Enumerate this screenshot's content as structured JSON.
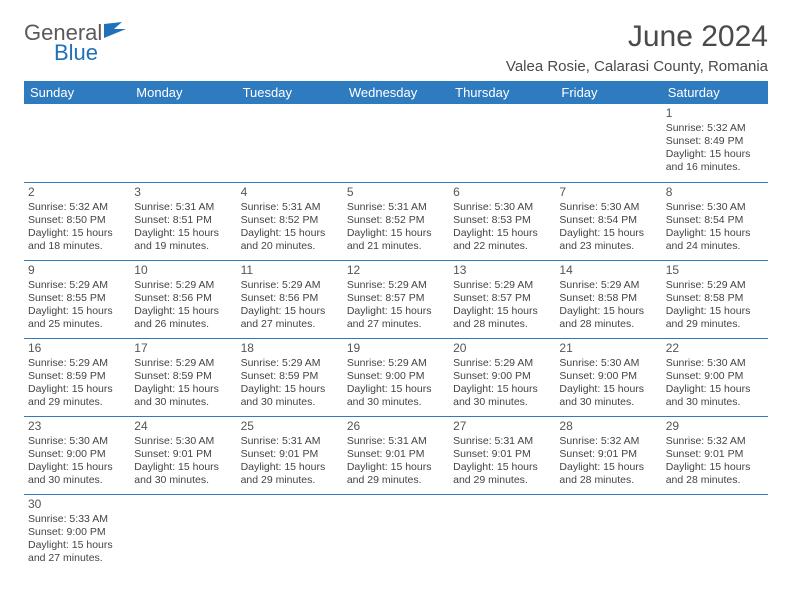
{
  "brand": {
    "general": "General",
    "blue": "Blue"
  },
  "title": "June 2024",
  "location": "Valea Rosie, Calarasi County, Romania",
  "colors": {
    "header_bg": "#2f7bbf",
    "header_text": "#ffffff",
    "rule": "#2f7bbf",
    "logo_gray": "#5a5a5a",
    "logo_blue": "#2072b8",
    "body_text": "#444444",
    "page_bg": "#ffffff"
  },
  "typography": {
    "title_fontsize": 30,
    "location_fontsize": 15,
    "dayheader_fontsize": 13,
    "cell_fontsize": 10.5,
    "daynum_fontsize": 12
  },
  "weekdays": [
    "Sunday",
    "Monday",
    "Tuesday",
    "Wednesday",
    "Thursday",
    "Friday",
    "Saturday"
  ],
  "weeks": [
    [
      null,
      null,
      null,
      null,
      null,
      null,
      {
        "n": "1",
        "sr": "Sunrise: 5:32 AM",
        "ss": "Sunset: 8:49 PM",
        "d1": "Daylight: 15 hours",
        "d2": "and 16 minutes."
      }
    ],
    [
      {
        "n": "2",
        "sr": "Sunrise: 5:32 AM",
        "ss": "Sunset: 8:50 PM",
        "d1": "Daylight: 15 hours",
        "d2": "and 18 minutes."
      },
      {
        "n": "3",
        "sr": "Sunrise: 5:31 AM",
        "ss": "Sunset: 8:51 PM",
        "d1": "Daylight: 15 hours",
        "d2": "and 19 minutes."
      },
      {
        "n": "4",
        "sr": "Sunrise: 5:31 AM",
        "ss": "Sunset: 8:52 PM",
        "d1": "Daylight: 15 hours",
        "d2": "and 20 minutes."
      },
      {
        "n": "5",
        "sr": "Sunrise: 5:31 AM",
        "ss": "Sunset: 8:52 PM",
        "d1": "Daylight: 15 hours",
        "d2": "and 21 minutes."
      },
      {
        "n": "6",
        "sr": "Sunrise: 5:30 AM",
        "ss": "Sunset: 8:53 PM",
        "d1": "Daylight: 15 hours",
        "d2": "and 22 minutes."
      },
      {
        "n": "7",
        "sr": "Sunrise: 5:30 AM",
        "ss": "Sunset: 8:54 PM",
        "d1": "Daylight: 15 hours",
        "d2": "and 23 minutes."
      },
      {
        "n": "8",
        "sr": "Sunrise: 5:30 AM",
        "ss": "Sunset: 8:54 PM",
        "d1": "Daylight: 15 hours",
        "d2": "and 24 minutes."
      }
    ],
    [
      {
        "n": "9",
        "sr": "Sunrise: 5:29 AM",
        "ss": "Sunset: 8:55 PM",
        "d1": "Daylight: 15 hours",
        "d2": "and 25 minutes."
      },
      {
        "n": "10",
        "sr": "Sunrise: 5:29 AM",
        "ss": "Sunset: 8:56 PM",
        "d1": "Daylight: 15 hours",
        "d2": "and 26 minutes."
      },
      {
        "n": "11",
        "sr": "Sunrise: 5:29 AM",
        "ss": "Sunset: 8:56 PM",
        "d1": "Daylight: 15 hours",
        "d2": "and 27 minutes."
      },
      {
        "n": "12",
        "sr": "Sunrise: 5:29 AM",
        "ss": "Sunset: 8:57 PM",
        "d1": "Daylight: 15 hours",
        "d2": "and 27 minutes."
      },
      {
        "n": "13",
        "sr": "Sunrise: 5:29 AM",
        "ss": "Sunset: 8:57 PM",
        "d1": "Daylight: 15 hours",
        "d2": "and 28 minutes."
      },
      {
        "n": "14",
        "sr": "Sunrise: 5:29 AM",
        "ss": "Sunset: 8:58 PM",
        "d1": "Daylight: 15 hours",
        "d2": "and 28 minutes."
      },
      {
        "n": "15",
        "sr": "Sunrise: 5:29 AM",
        "ss": "Sunset: 8:58 PM",
        "d1": "Daylight: 15 hours",
        "d2": "and 29 minutes."
      }
    ],
    [
      {
        "n": "16",
        "sr": "Sunrise: 5:29 AM",
        "ss": "Sunset: 8:59 PM",
        "d1": "Daylight: 15 hours",
        "d2": "and 29 minutes."
      },
      {
        "n": "17",
        "sr": "Sunrise: 5:29 AM",
        "ss": "Sunset: 8:59 PM",
        "d1": "Daylight: 15 hours",
        "d2": "and 30 minutes."
      },
      {
        "n": "18",
        "sr": "Sunrise: 5:29 AM",
        "ss": "Sunset: 8:59 PM",
        "d1": "Daylight: 15 hours",
        "d2": "and 30 minutes."
      },
      {
        "n": "19",
        "sr": "Sunrise: 5:29 AM",
        "ss": "Sunset: 9:00 PM",
        "d1": "Daylight: 15 hours",
        "d2": "and 30 minutes."
      },
      {
        "n": "20",
        "sr": "Sunrise: 5:29 AM",
        "ss": "Sunset: 9:00 PM",
        "d1": "Daylight: 15 hours",
        "d2": "and 30 minutes."
      },
      {
        "n": "21",
        "sr": "Sunrise: 5:30 AM",
        "ss": "Sunset: 9:00 PM",
        "d1": "Daylight: 15 hours",
        "d2": "and 30 minutes."
      },
      {
        "n": "22",
        "sr": "Sunrise: 5:30 AM",
        "ss": "Sunset: 9:00 PM",
        "d1": "Daylight: 15 hours",
        "d2": "and 30 minutes."
      }
    ],
    [
      {
        "n": "23",
        "sr": "Sunrise: 5:30 AM",
        "ss": "Sunset: 9:00 PM",
        "d1": "Daylight: 15 hours",
        "d2": "and 30 minutes."
      },
      {
        "n": "24",
        "sr": "Sunrise: 5:30 AM",
        "ss": "Sunset: 9:01 PM",
        "d1": "Daylight: 15 hours",
        "d2": "and 30 minutes."
      },
      {
        "n": "25",
        "sr": "Sunrise: 5:31 AM",
        "ss": "Sunset: 9:01 PM",
        "d1": "Daylight: 15 hours",
        "d2": "and 29 minutes."
      },
      {
        "n": "26",
        "sr": "Sunrise: 5:31 AM",
        "ss": "Sunset: 9:01 PM",
        "d1": "Daylight: 15 hours",
        "d2": "and 29 minutes."
      },
      {
        "n": "27",
        "sr": "Sunrise: 5:31 AM",
        "ss": "Sunset: 9:01 PM",
        "d1": "Daylight: 15 hours",
        "d2": "and 29 minutes."
      },
      {
        "n": "28",
        "sr": "Sunrise: 5:32 AM",
        "ss": "Sunset: 9:01 PM",
        "d1": "Daylight: 15 hours",
        "d2": "and 28 minutes."
      },
      {
        "n": "29",
        "sr": "Sunrise: 5:32 AM",
        "ss": "Sunset: 9:01 PM",
        "d1": "Daylight: 15 hours",
        "d2": "and 28 minutes."
      }
    ],
    [
      {
        "n": "30",
        "sr": "Sunrise: 5:33 AM",
        "ss": "Sunset: 9:00 PM",
        "d1": "Daylight: 15 hours",
        "d2": "and 27 minutes."
      },
      null,
      null,
      null,
      null,
      null,
      null
    ]
  ]
}
